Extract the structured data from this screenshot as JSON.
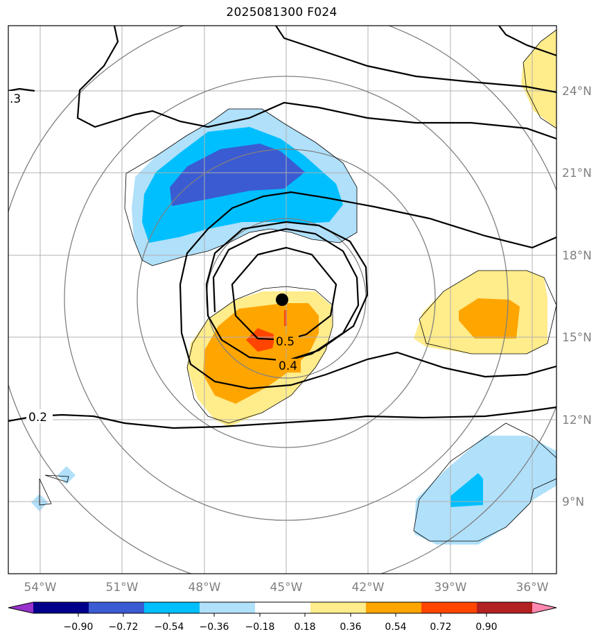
{
  "title": "2025081300 F024",
  "chart_data": {
    "type": "map",
    "title": "2025081300 F024",
    "x_tick_labels": [
      "54°W",
      "51°W",
      "48°W",
      "45°W",
      "42°W",
      "39°W",
      "36°W"
    ],
    "y_tick_labels": [
      "24°N",
      "21°N",
      "18°N",
      "15°N",
      "12°N",
      "9°N"
    ],
    "lon_range": [
      -55.2,
      -35.2
    ],
    "lat_range": [
      6.7,
      26.7
    ],
    "grid": true,
    "center_marker": {
      "lon": -45.0,
      "lat": 16.4
    },
    "contour_labels": [
      ".3",
      "0.2",
      "0.4",
      "0.5"
    ],
    "colorbar": {
      "orientation": "horizontal",
      "extend": "both",
      "tick_labels": [
        "−0.90",
        "−0.72",
        "−0.54",
        "−0.36",
        "−0.18",
        "0.18",
        "0.36",
        "0.54",
        "0.72",
        "0.90"
      ],
      "colors": [
        "#9932cc",
        "#00008b",
        "#3a5bd2",
        "#00bfff",
        "#b0e0fa",
        "#ffffff",
        "#ffec8b",
        "#ffa500",
        "#ff4500",
        "#b22222",
        "#ff88b0"
      ]
    }
  }
}
